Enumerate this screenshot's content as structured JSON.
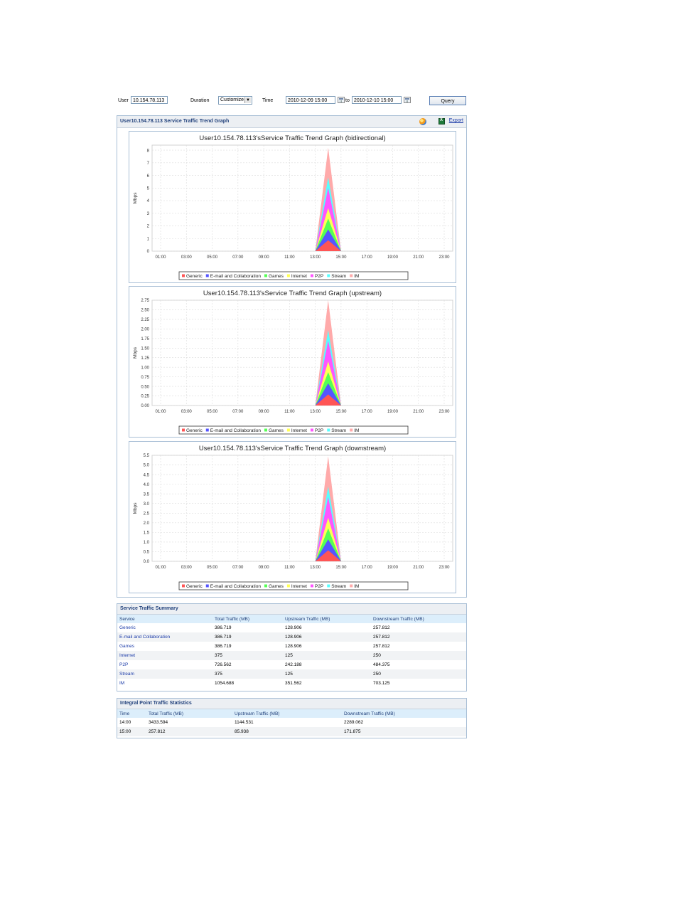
{
  "query": {
    "user_label": "User",
    "user_value": "10.154.78.113",
    "duration_label": "Duration",
    "duration_value": "Customize",
    "time_label": "Time",
    "time_from": "2010-12-09 15:00",
    "to_label": "to",
    "time_to": "2010-12-10 15:00",
    "query_button": "Query"
  },
  "graph_panel": {
    "title": "User10.154.78.113 Service Traffic Trend Graph",
    "export_label": "Export"
  },
  "legend": [
    "Generic",
    "E-mail and Collaboration",
    "Games",
    "Internet",
    "P2P",
    "Stream",
    "IM"
  ],
  "colors": {
    "Generic": "#ff5555",
    "E-mail and Collaboration": "#5555ff",
    "Games": "#55ff55",
    "Internet": "#ffff55",
    "P2P": "#ff55ff",
    "Stream": "#55ffff",
    "IM": "#ffaaaa",
    "accent": "#1f3f7a",
    "link": "#1a3aa8"
  },
  "chart_data": [
    {
      "type": "area",
      "stacked": true,
      "title": "User10.154.78.113'sService Traffic Trend Graph (bidirectional)",
      "ylabel": "Mbps",
      "ylim": [
        0,
        8.4
      ],
      "yticks": [
        "0",
        "1",
        "2",
        "3",
        "4",
        "5",
        "6",
        "7",
        "8"
      ],
      "ytick_values": [
        0,
        1,
        2,
        3,
        4,
        5,
        6,
        7,
        8
      ],
      "x": [
        "01:00",
        "03:00",
        "05:00",
        "07:00",
        "09:00",
        "11:00",
        "13:00",
        "15:00",
        "17:00",
        "19:00",
        "21:00",
        "23:00"
      ],
      "peak_x": "14:00",
      "series": [
        {
          "name": "Generic",
          "peak": 0.86
        },
        {
          "name": "E-mail and Collaboration",
          "peak": 0.86
        },
        {
          "name": "Games",
          "peak": 0.86
        },
        {
          "name": "Internet",
          "peak": 0.83
        },
        {
          "name": "P2P",
          "peak": 1.61
        },
        {
          "name": "Stream",
          "peak": 0.83
        },
        {
          "name": "IM",
          "peak": 2.34
        }
      ],
      "grid": true,
      "legend_position": "bottom"
    },
    {
      "type": "area",
      "stacked": true,
      "title": "User10.154.78.113'sService Traffic Trend Graph (upstream)",
      "ylabel": "Mbps",
      "ylim": [
        0,
        2.75
      ],
      "yticks": [
        "0.00",
        "0.25",
        "0.50",
        "0.75",
        "1.00",
        "1.25",
        "1.50",
        "1.75",
        "2.00",
        "2.25",
        "2.50",
        "2.75"
      ],
      "ytick_values": [
        0,
        0.25,
        0.5,
        0.75,
        1.0,
        1.25,
        1.5,
        1.75,
        2.0,
        2.25,
        2.5,
        2.75
      ],
      "x": [
        "01:00",
        "03:00",
        "05:00",
        "07:00",
        "09:00",
        "11:00",
        "13:00",
        "15:00",
        "17:00",
        "19:00",
        "21:00",
        "23:00"
      ],
      "peak_x": "14:00",
      "series": [
        {
          "name": "Generic",
          "peak": 0.29
        },
        {
          "name": "E-mail and Collaboration",
          "peak": 0.29
        },
        {
          "name": "Games",
          "peak": 0.29
        },
        {
          "name": "Internet",
          "peak": 0.28
        },
        {
          "name": "P2P",
          "peak": 0.54
        },
        {
          "name": "Stream",
          "peak": 0.28
        },
        {
          "name": "IM",
          "peak": 0.78
        }
      ],
      "grid": true,
      "legend_position": "bottom"
    },
    {
      "type": "area",
      "stacked": true,
      "title": "User10.154.78.113'sService Traffic Trend Graph (downstream)",
      "ylabel": "Mbps",
      "ylim": [
        0,
        5.5
      ],
      "yticks": [
        "0.0",
        "0.5",
        "1.0",
        "1.5",
        "2.0",
        "2.5",
        "3.0",
        "3.5",
        "4.0",
        "4.5",
        "5.0",
        "5.5"
      ],
      "ytick_values": [
        0,
        0.5,
        1.0,
        1.5,
        2.0,
        2.5,
        3.0,
        3.5,
        4.0,
        4.5,
        5.0,
        5.5
      ],
      "x": [
        "01:00",
        "03:00",
        "05:00",
        "07:00",
        "09:00",
        "11:00",
        "13:00",
        "15:00",
        "17:00",
        "19:00",
        "21:00",
        "23:00"
      ],
      "peak_x": "14:00",
      "series": [
        {
          "name": "Generic",
          "peak": 0.57
        },
        {
          "name": "E-mail and Collaboration",
          "peak": 0.57
        },
        {
          "name": "Games",
          "peak": 0.57
        },
        {
          "name": "Internet",
          "peak": 0.55
        },
        {
          "name": "P2P",
          "peak": 1.08
        },
        {
          "name": "Stream",
          "peak": 0.55
        },
        {
          "name": "IM",
          "peak": 1.56
        }
      ],
      "grid": true,
      "legend_position": "bottom"
    }
  ],
  "summary": {
    "title": "Service Traffic Summary",
    "headers": [
      "Service",
      "Total Traffic (MB)",
      "Upstream Traffic (MB)",
      "Downstream Traffic (MB)"
    ],
    "rows": [
      [
        "Generic",
        "386.719",
        "128.906",
        "257.812"
      ],
      [
        "E-mail and Collaboration",
        "386.719",
        "128.906",
        "257.812"
      ],
      [
        "Games",
        "386.719",
        "128.906",
        "257.812"
      ],
      [
        "Internet",
        "375",
        "125",
        "250"
      ],
      [
        "P2P",
        "726.562",
        "242.188",
        "484.375"
      ],
      [
        "Stream",
        "375",
        "125",
        "250"
      ],
      [
        "IM",
        "1054.688",
        "351.562",
        "703.125"
      ]
    ]
  },
  "integral": {
    "title": "Integral Point Traffic Statistics",
    "headers": [
      "Time",
      "Total Traffic (MB)",
      "Upstream Traffic (MB)",
      "Downstream Traffic (MB)"
    ],
    "rows": [
      [
        "14:00",
        "3433.594",
        "1144.531",
        "2289.062"
      ],
      [
        "15:00",
        "257.812",
        "85.938",
        "171.875"
      ]
    ]
  }
}
